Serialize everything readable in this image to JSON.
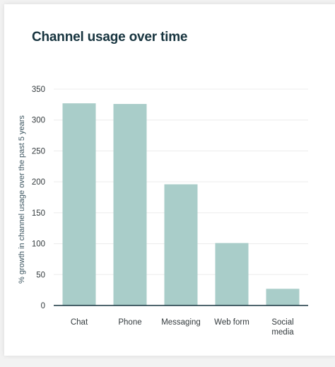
{
  "chart_data": {
    "type": "bar",
    "title": "Channel usage over time",
    "xlabel": "",
    "ylabel": "% growth in channel usage over the past 5 years",
    "categories": [
      "Chat",
      "Phone",
      "Messaging",
      "Web form",
      "Social media"
    ],
    "values": [
      327,
      326,
      196,
      101,
      27
    ],
    "ylim": [
      0,
      350
    ],
    "yticks": [
      0,
      50,
      100,
      150,
      200,
      250,
      300,
      350
    ],
    "grid": true,
    "legend": "none",
    "colors": {
      "bar": "#a9cdc9",
      "axis": "#17343f",
      "grid": "#ececec"
    }
  }
}
